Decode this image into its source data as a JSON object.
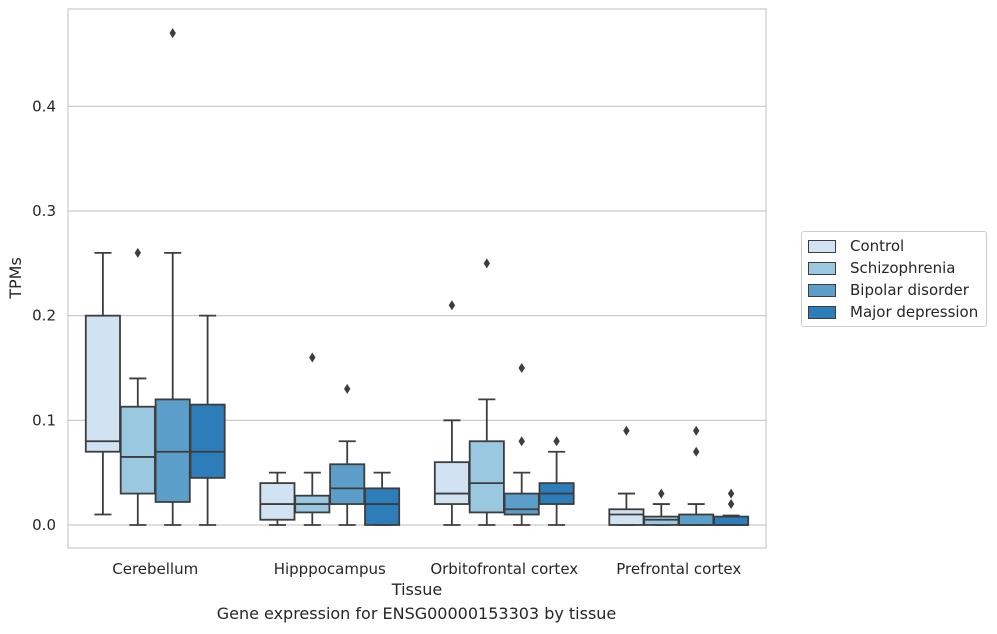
{
  "chart_data": {
    "type": "box",
    "title": "",
    "caption": "Gene expression for ENSG00000153303 by tissue",
    "xlabel": "Tissue",
    "ylabel": "TPMs",
    "ylim": [
      -0.022,
      0.493
    ],
    "yticks": [
      "0.0",
      "0.1",
      "0.2",
      "0.3",
      "0.4"
    ],
    "grid": true,
    "legend_position": "outside-right",
    "categories": [
      "Cerebellum",
      "Hipppocampus",
      "Orbitofrontal cortex",
      "Prefrontal cortex"
    ],
    "series": [
      {
        "name": "Control",
        "color": "#d1e2f2",
        "boxes": [
          {
            "whislo": 0.01,
            "q1": 0.07,
            "med": 0.08,
            "q3": 0.2,
            "whishi": 0.26,
            "fliers": []
          },
          {
            "whislo": 0.0,
            "q1": 0.005,
            "med": 0.02,
            "q3": 0.04,
            "whishi": 0.05,
            "fliers": []
          },
          {
            "whislo": 0.0,
            "q1": 0.02,
            "med": 0.03,
            "q3": 0.06,
            "whishi": 0.1,
            "fliers": [
              0.21
            ]
          },
          {
            "whislo": 0.0,
            "q1": 0.0,
            "med": 0.01,
            "q3": 0.015,
            "whishi": 0.03,
            "fliers": [
              0.09
            ]
          }
        ]
      },
      {
        "name": "Schizophrenia",
        "color": "#9ac8e0",
        "boxes": [
          {
            "whislo": 0.0,
            "q1": 0.03,
            "med": 0.065,
            "q3": 0.113,
            "whishi": 0.14,
            "fliers": [
              0.26
            ]
          },
          {
            "whislo": 0.0,
            "q1": 0.012,
            "med": 0.02,
            "q3": 0.028,
            "whishi": 0.05,
            "fliers": [
              0.16
            ]
          },
          {
            "whislo": 0.0,
            "q1": 0.012,
            "med": 0.04,
            "q3": 0.08,
            "whishi": 0.12,
            "fliers": [
              0.25
            ]
          },
          {
            "whislo": 0.0,
            "q1": 0.0,
            "med": 0.005,
            "q3": 0.008,
            "whishi": 0.02,
            "fliers": [
              0.03
            ]
          }
        ]
      },
      {
        "name": "Bipolar disorder",
        "color": "#5b9ec9",
        "boxes": [
          {
            "whislo": 0.0,
            "q1": 0.022,
            "med": 0.07,
            "q3": 0.12,
            "whishi": 0.26,
            "fliers": [
              0.47
            ]
          },
          {
            "whislo": 0.0,
            "q1": 0.02,
            "med": 0.035,
            "q3": 0.058,
            "whishi": 0.08,
            "fliers": [
              0.13
            ]
          },
          {
            "whislo": 0.0,
            "q1": 0.01,
            "med": 0.015,
            "q3": 0.03,
            "whishi": 0.05,
            "fliers": [
              0.08,
              0.15
            ]
          },
          {
            "whislo": 0.0,
            "q1": 0.0,
            "med": 0.0,
            "q3": 0.01,
            "whishi": 0.02,
            "fliers": [
              0.07,
              0.09
            ]
          }
        ]
      },
      {
        "name": "Major depression",
        "color": "#2d7dbb",
        "boxes": [
          {
            "whislo": 0.0,
            "q1": 0.045,
            "med": 0.07,
            "q3": 0.115,
            "whishi": 0.2,
            "fliers": []
          },
          {
            "whislo": 0.0,
            "q1": 0.0,
            "med": 0.02,
            "q3": 0.035,
            "whishi": 0.05,
            "fliers": []
          },
          {
            "whislo": 0.0,
            "q1": 0.02,
            "med": 0.03,
            "q3": 0.04,
            "whishi": 0.07,
            "fliers": [
              0.08
            ]
          },
          {
            "whislo": 0.0,
            "q1": 0.0,
            "med": 0.0,
            "q3": 0.008,
            "whishi": 0.009,
            "fliers": [
              0.02,
              0.03
            ]
          }
        ]
      }
    ]
  }
}
